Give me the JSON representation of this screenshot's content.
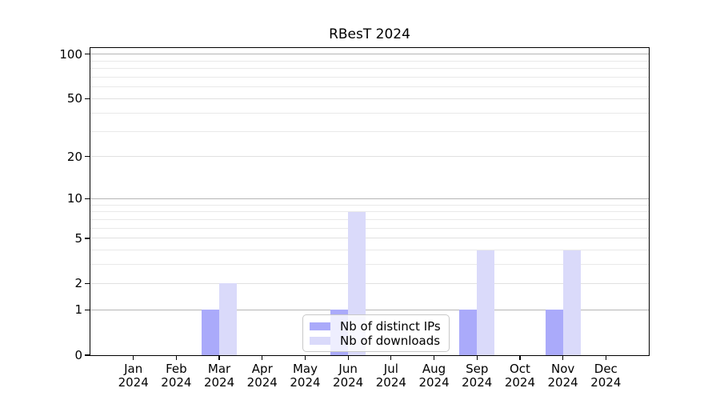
{
  "chart_data": {
    "type": "bar",
    "title": "RBesT 2024",
    "x_tick_year": "2024",
    "categories": [
      "Jan",
      "Feb",
      "Mar",
      "Apr",
      "May",
      "Jun",
      "Jul",
      "Aug",
      "Sep",
      "Oct",
      "Nov",
      "Dec"
    ],
    "series": [
      {
        "name": "Nb of distinct IPs",
        "color": "#aaaafa",
        "values": [
          0,
          0,
          1,
          0,
          0,
          1,
          0,
          0,
          1,
          0,
          1,
          0
        ]
      },
      {
        "name": "Nb of downloads",
        "color": "#dadafa",
        "values": [
          0,
          0,
          2,
          0,
          0,
          8,
          0,
          0,
          4,
          0,
          4,
          0
        ]
      }
    ],
    "yscale": "log1p",
    "ylim": [
      0,
      110
    ],
    "yticks_labeled": [
      0,
      1,
      2,
      5,
      10,
      20,
      50,
      100
    ],
    "yticks_decade": [
      1,
      10,
      100
    ],
    "yticks_minor": [
      3,
      4,
      6,
      7,
      8,
      9,
      30,
      40,
      60,
      70,
      80,
      90
    ],
    "grid": "horizontal",
    "legend_position": "lower-center-inside",
    "colors": {
      "grid_decade": "#b5b5b5",
      "grid_mid": "#e0e0e0",
      "grid_minor": "#e9e9e9",
      "axis": "#000000",
      "text": "#000000",
      "legend_border": "#c8c8c8",
      "background": "#ffffff"
    }
  }
}
